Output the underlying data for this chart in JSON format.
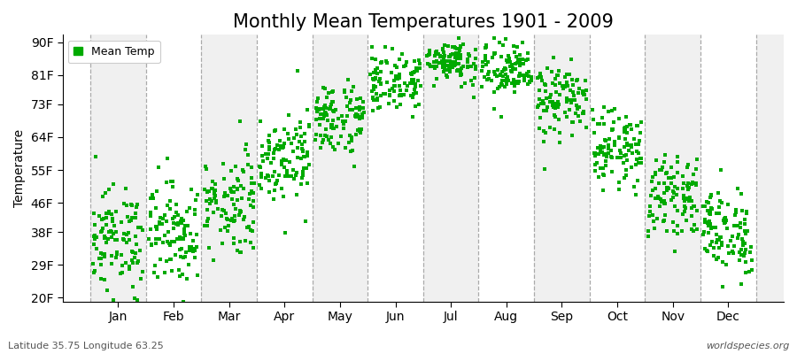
{
  "title": "Monthly Mean Temperatures 1901 - 2009",
  "ylabel": "Temperature",
  "xlabel_months": [
    "Jan",
    "Feb",
    "Mar",
    "Apr",
    "May",
    "Jun",
    "Jul",
    "Aug",
    "Sep",
    "Oct",
    "Nov",
    "Dec"
  ],
  "yticks": [
    20,
    29,
    38,
    46,
    55,
    64,
    73,
    81,
    90
  ],
  "ytick_labels": [
    "20F",
    "29F",
    "38F",
    "46F",
    "55F",
    "64F",
    "73F",
    "81F",
    "90F"
  ],
  "ylim": [
    19,
    92
  ],
  "dot_color": "#00aa00",
  "dot_size": 10,
  "background_color": "#ffffff",
  "band_color_even": "#f0f0f0",
  "band_color_odd": "#ffffff",
  "legend_label": "Mean Temp",
  "subtitle_left": "Latitude 35.75 Longitude 63.25",
  "subtitle_right": "worldspecies.org",
  "years": 109,
  "monthly_means_f": [
    36,
    38,
    46,
    59,
    69,
    79,
    85,
    82,
    74,
    61,
    48,
    38
  ],
  "monthly_stds_f": [
    7,
    7,
    7,
    6,
    5,
    4,
    3,
    4,
    5,
    5,
    5,
    6
  ],
  "title_fontsize": 15,
  "axis_fontsize": 10,
  "tick_fontsize": 10,
  "dash_color": "#aaaaaa"
}
